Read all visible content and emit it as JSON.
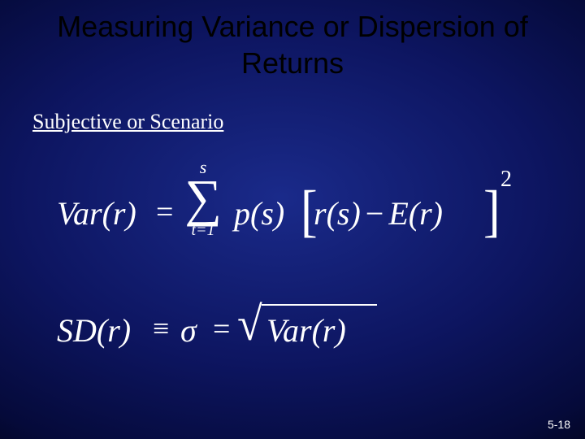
{
  "slide": {
    "title": "Measuring Variance or Dispersion of Returns",
    "subtitle": "Subjective or Scenario",
    "page_number": "5-18",
    "background": {
      "gradient_center": "#1a2a8a",
      "gradient_mid": "#0d1560",
      "gradient_outer": "#050a3a",
      "gradient_edge": "#000000"
    },
    "title_color": "#000000",
    "title_fontsize": 36,
    "subtitle_fontsize": 26,
    "text_color": "#ffffff",
    "formula_fontsize": 40
  },
  "formula1": {
    "lhs": "Var(r)",
    "eq": "=",
    "sum_upper": "s",
    "sum_symbol": "∑",
    "sum_lower": "t=1",
    "factor": "p(s)",
    "lbracket": "[",
    "inner_lhs": "r(s)",
    "inner_minus": "−",
    "inner_rhs": "E(r)",
    "rbracket": "]",
    "exponent": "2"
  },
  "formula2": {
    "lhs": "SD(r)",
    "equiv": "≡",
    "sigma": "σ",
    "eq": "=",
    "sqrt_symbol": "√",
    "radicand": "Var(r)"
  }
}
